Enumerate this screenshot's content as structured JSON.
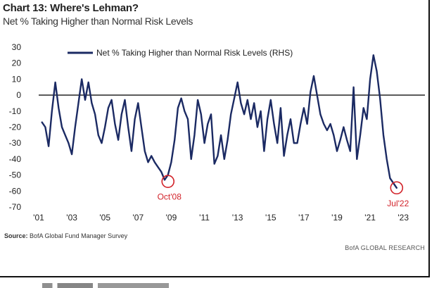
{
  "header": {
    "title": "Chart 13: Where's Lehman?",
    "subtitle": "Net % Taking Higher than Normal Risk Levels"
  },
  "footer": {
    "source_label": "Source:",
    "source_text": "BofA Global Fund Manager Survey",
    "brand": "BofA GLOBAL RESEARCH"
  },
  "colors": {
    "series": "#1b2a63",
    "annotation": "#d2232a",
    "zero_line": "#111111"
  },
  "chart_data": {
    "type": "line",
    "title": "Chart 13: Where's Lehman?",
    "subtitle": "Net % Taking Higher than Normal Risk Levels",
    "xlabel": "",
    "ylabel": "",
    "xlim": [
      2001.0,
      2023.5
    ],
    "ylim": [
      -70,
      30
    ],
    "yticks": [
      30,
      20,
      10,
      0,
      -10,
      -20,
      -30,
      -40,
      -50,
      -60,
      -70
    ],
    "xticks": [
      {
        "x": 2001,
        "label": "'01"
      },
      {
        "x": 2003,
        "label": "'03"
      },
      {
        "x": 2005,
        "label": "'05"
      },
      {
        "x": 2007,
        "label": "'07"
      },
      {
        "x": 2009,
        "label": "'09"
      },
      {
        "x": 2011,
        "label": "'11"
      },
      {
        "x": 2013,
        "label": "'13"
      },
      {
        "x": 2015,
        "label": "'15"
      },
      {
        "x": 2017,
        "label": "'17"
      },
      {
        "x": 2019,
        "label": "'19"
      },
      {
        "x": 2021,
        "label": "'21"
      },
      {
        "x": 2023,
        "label": "'23"
      }
    ],
    "legend_position": "top",
    "grid": false,
    "series": [
      {
        "name": "Net % Taking Higher than Normal Risk Levels (RHS)",
        "x": [
          2001.2,
          2001.4,
          2001.6,
          2001.8,
          2002.0,
          2002.2,
          2002.4,
          2002.6,
          2002.8,
          2003.0,
          2003.2,
          2003.4,
          2003.6,
          2003.8,
          2004.0,
          2004.2,
          2004.4,
          2004.6,
          2004.8,
          2005.0,
          2005.2,
          2005.4,
          2005.6,
          2005.8,
          2006.0,
          2006.2,
          2006.4,
          2006.6,
          2006.8,
          2007.0,
          2007.2,
          2007.4,
          2007.6,
          2007.8,
          2008.0,
          2008.2,
          2008.4,
          2008.6,
          2008.8,
          2009.0,
          2009.2,
          2009.4,
          2009.6,
          2009.8,
          2010.0,
          2010.2,
          2010.4,
          2010.6,
          2010.8,
          2011.0,
          2011.2,
          2011.4,
          2011.6,
          2011.8,
          2012.0,
          2012.2,
          2012.4,
          2012.6,
          2012.8,
          2013.0,
          2013.2,
          2013.4,
          2013.6,
          2013.8,
          2014.0,
          2014.2,
          2014.4,
          2014.6,
          2014.8,
          2015.0,
          2015.2,
          2015.4,
          2015.6,
          2015.8,
          2016.0,
          2016.2,
          2016.4,
          2016.6,
          2016.8,
          2017.0,
          2017.2,
          2017.4,
          2017.6,
          2017.8,
          2018.0,
          2018.2,
          2018.4,
          2018.6,
          2018.8,
          2019.0,
          2019.2,
          2019.4,
          2019.6,
          2019.8,
          2020.0,
          2020.2,
          2020.4,
          2020.6,
          2020.8,
          2021.0,
          2021.2,
          2021.4,
          2021.6,
          2021.8,
          2022.0,
          2022.2,
          2022.4,
          2022.6
        ],
        "values": [
          -17,
          -20,
          -32,
          -10,
          8,
          -8,
          -20,
          -25,
          -30,
          -37,
          -20,
          -5,
          10,
          -3,
          8,
          -5,
          -12,
          -25,
          -30,
          -20,
          -8,
          -3,
          -18,
          -28,
          -12,
          -3,
          -20,
          -35,
          -15,
          -5,
          -20,
          -35,
          -42,
          -38,
          -42,
          -45,
          -48,
          -53,
          -50,
          -42,
          -28,
          -8,
          -2,
          -10,
          -15,
          -40,
          -25,
          -3,
          -12,
          -30,
          -18,
          -12,
          -43,
          -38,
          -25,
          -40,
          -28,
          -12,
          -2,
          8,
          -5,
          -12,
          -3,
          -15,
          -5,
          -20,
          -10,
          -35,
          -15,
          -3,
          -18,
          -30,
          -8,
          -38,
          -25,
          -15,
          -30,
          -30,
          -18,
          -8,
          -18,
          2,
          12,
          0,
          -12,
          -18,
          -22,
          -18,
          -25,
          -35,
          -28,
          -20,
          -28,
          -35,
          5,
          -40,
          -25,
          -8,
          -15,
          10,
          25,
          15,
          -2,
          -25,
          -40,
          -52,
          -55,
          -58
        ]
      }
    ],
    "annotations": [
      {
        "label": "Oct'08",
        "x": 2008.8,
        "y": -54
      },
      {
        "label": "Jul'22",
        "x": 2022.6,
        "y": -58
      }
    ]
  }
}
